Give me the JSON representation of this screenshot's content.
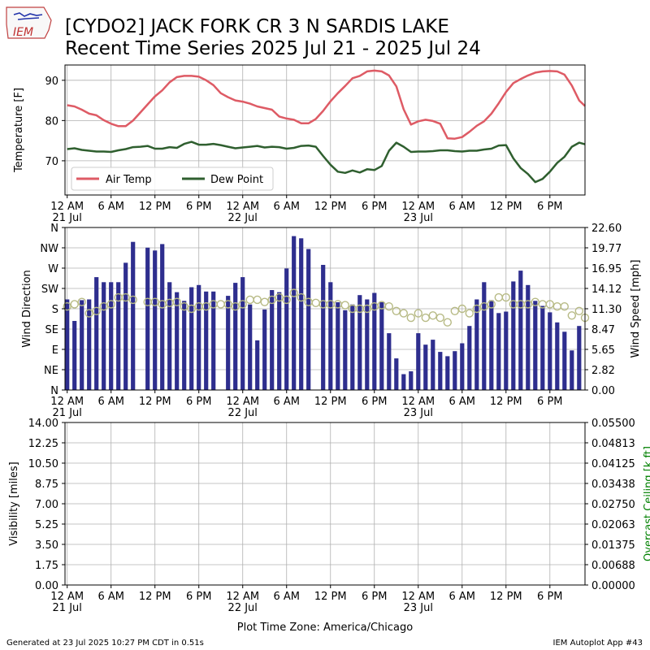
{
  "title": {
    "line1": "[CYDO2] JACK FORK CR 3 N SARDIS LAKE",
    "line2": "Recent Time Series 2025 Jul 21 - 2025 Jul 24"
  },
  "logo": {
    "text": "IEM",
    "icon": "iem-state-logo"
  },
  "footer": {
    "left": "Generated at 23 Jul 2025 10:27 PM CDT in 0.51s",
    "right": "IEM Autoplot App #43"
  },
  "x_axis": {
    "tick_labels": [
      "12 AM",
      "6 AM",
      "12 PM",
      "6 PM",
      "12 AM",
      "6 AM",
      "12 PM",
      "6 PM",
      "12 AM",
      "6 AM",
      "12 PM",
      "6 PM"
    ],
    "date_labels": [
      {
        "hour": 0,
        "text": "21 Jul"
      },
      {
        "hour": 24,
        "text": "22 Jul"
      },
      {
        "hour": 48,
        "text": "23 Jul"
      }
    ],
    "xlabel": "Plot Time Zone: America/Chicago"
  },
  "colors": {
    "air_temp": "#de5b65",
    "dew_point": "#2f5f2f",
    "wind_bar": "#2e2e8e",
    "wind_dir_marker": "#b7ba85",
    "grid": "#b0b0b0",
    "ceiling_label": "#008000"
  },
  "chart_data": [
    {
      "type": "line",
      "ylabel": "Temperature [F]",
      "ylim": [
        61.5,
        93.8
      ],
      "yticks": [
        70,
        80,
        90
      ],
      "xlim_hours": [
        -0.3,
        70.8
      ],
      "grid": true,
      "legend_placement": "lower-left",
      "x_hours": [
        0,
        1,
        2,
        3,
        4,
        5,
        6,
        7,
        8,
        9,
        10,
        11,
        12,
        13,
        14,
        15,
        16,
        17,
        18,
        19,
        20,
        21,
        22,
        23,
        24,
        25,
        26,
        27,
        28,
        29,
        30,
        31,
        32,
        33,
        34,
        35,
        36,
        37,
        38,
        39,
        40,
        41,
        42,
        43,
        44,
        45,
        46,
        47,
        48,
        49,
        50,
        51,
        52,
        53,
        54,
        55,
        56,
        57,
        58,
        59,
        60,
        61,
        62,
        63,
        64,
        65,
        66,
        67,
        68,
        69,
        70,
        70.8
      ],
      "series": [
        {
          "name": "Air Temp",
          "values": [
            83.8,
            83.5,
            82.7,
            81.7,
            81.3,
            80.1,
            79.2,
            78.6,
            78.6,
            80,
            82,
            84,
            86,
            87.5,
            89.5,
            90.8,
            91.1,
            91.1,
            90.9,
            90,
            88.8,
            86.8,
            85.8,
            85,
            84.7,
            84.2,
            83.5,
            83.1,
            82.7,
            81,
            80.5,
            80.2,
            79.3,
            79.3,
            80.4,
            82.4,
            84.8,
            86.8,
            88.6,
            90.5,
            91.1,
            92.2,
            92.4,
            92.2,
            91.2,
            88.5,
            82.8,
            79,
            79.8,
            80.2,
            79.9,
            79.2,
            75.6,
            75.5,
            75.9,
            77.2,
            78.7,
            79.8,
            81.7,
            84.3,
            87.1,
            89.3,
            90.3,
            91.2,
            91.9,
            92.2,
            92.3,
            92.2,
            91.4,
            88.7,
            85,
            83.6
          ]
        },
        {
          "name": "Dew Point",
          "values": [
            72.9,
            73.1,
            72.7,
            72.5,
            72.3,
            72.3,
            72.2,
            72.6,
            72.9,
            73.4,
            73.5,
            73.7,
            73,
            73,
            73.4,
            73.2,
            74.2,
            74.7,
            74,
            74,
            74.2,
            73.9,
            73.5,
            73.1,
            73.3,
            73.5,
            73.7,
            73.3,
            73.5,
            73.4,
            73,
            73.2,
            73.7,
            73.8,
            73.5,
            71.2,
            69,
            67.3,
            67,
            67.6,
            67.1,
            67.9,
            67.7,
            68.7,
            72.5,
            74.5,
            73.5,
            72.2,
            72.3,
            72.3,
            72.4,
            72.6,
            72.6,
            72.4,
            72.3,
            72.5,
            72.5,
            72.8,
            73,
            73.8,
            73.9,
            70.6,
            68.2,
            66.7,
            64.7,
            65.5,
            67.3,
            69.5,
            71,
            73.5,
            74.5,
            74.1
          ]
        }
      ]
    },
    {
      "type": "bar",
      "ylabel": "Wind Direction",
      "y2label": "Wind Speed [mph]",
      "direction_ticks": [
        "N",
        "NE",
        "E",
        "SE",
        "S",
        "SW",
        "W",
        "NW",
        "N"
      ],
      "speed_ylim": [
        0,
        22.6
      ],
      "speed_ticks": [
        "0.00",
        "2.82",
        "5.65",
        "8.47",
        "11.30",
        "14.12",
        "16.95",
        "19.77",
        "22.60"
      ],
      "grid": true,
      "x_hours": [
        0,
        1,
        2,
        3,
        4,
        5,
        6,
        7,
        8,
        9,
        10,
        11,
        12,
        13,
        14,
        15,
        16,
        17,
        18,
        19,
        20,
        21,
        22,
        23,
        24,
        25,
        26,
        27,
        28,
        29,
        30,
        31,
        32,
        33,
        34,
        35,
        36,
        37,
        38,
        39,
        40,
        41,
        42,
        43,
        44,
        45,
        46,
        47,
        48,
        49,
        50,
        51,
        52,
        53,
        54,
        55,
        56,
        57,
        58,
        59,
        60,
        61,
        62,
        63,
        64,
        65,
        66,
        67,
        68,
        69,
        70,
        70.8
      ],
      "series": [
        {
          "name": "Wind Speed",
          "values": [
            12.6,
            9.6,
            12.5,
            12.6,
            15.7,
            15,
            15,
            15,
            17.7,
            20.6,
            0,
            19.8,
            19.4,
            20.3,
            15,
            13.6,
            12.4,
            14.3,
            14.6,
            13.7,
            13.7,
            0,
            13.1,
            14.9,
            15.7,
            11.9,
            6.9,
            11.2,
            13.9,
            13.6,
            16.9,
            21.4,
            21.1,
            19.6,
            0,
            17.4,
            15,
            12.2,
            11.1,
            11.9,
            13.2,
            12.6,
            13.5,
            12.2,
            7.9,
            4.4,
            2.2,
            2.6,
            7.9,
            6.3,
            7,
            5.3,
            4.7,
            5.4,
            6.5,
            8.9,
            12.6,
            15,
            12.5,
            10.7,
            10.9,
            15.1,
            16.6,
            14.6,
            12.4,
            11.7,
            10.8,
            9.4,
            8.1,
            5.5,
            8.9,
            0
          ]
        },
        {
          "name": "Wind Direction",
          "values": [
            185,
            190,
            195,
            170,
            175,
            185,
            190,
            205,
            205,
            200,
            0,
            195,
            195,
            190,
            193,
            195,
            185,
            180,
            185,
            185,
            190,
            190,
            190,
            185,
            190,
            200,
            200,
            195,
            200,
            205,
            200,
            215,
            205,
            195,
            193,
            190,
            190,
            190,
            188,
            180,
            180,
            180,
            185,
            188,
            185,
            175,
            170,
            160,
            170,
            160,
            165,
            160,
            150,
            175,
            180,
            170,
            180,
            185,
            190,
            205,
            205,
            190,
            190,
            190,
            195,
            190,
            190,
            185,
            185,
            165,
            175,
            160
          ]
        }
      ]
    },
    {
      "type": "line",
      "ylabel": "Visibility [miles]",
      "y2label": "Overcast Ceiling [k ft]",
      "ylim": [
        0,
        14
      ],
      "yticks": [
        "0.00",
        "1.75",
        "3.50",
        "5.25",
        "7.00",
        "8.75",
        "10.50",
        "12.25",
        "14.00"
      ],
      "y2lim": [
        0,
        0.055
      ],
      "y2ticks": [
        "0.00000",
        "0.00688",
        "0.01375",
        "0.02063",
        "0.02750",
        "0.03438",
        "0.04125",
        "0.04813",
        "0.05500"
      ],
      "grid": true,
      "series": []
    }
  ]
}
